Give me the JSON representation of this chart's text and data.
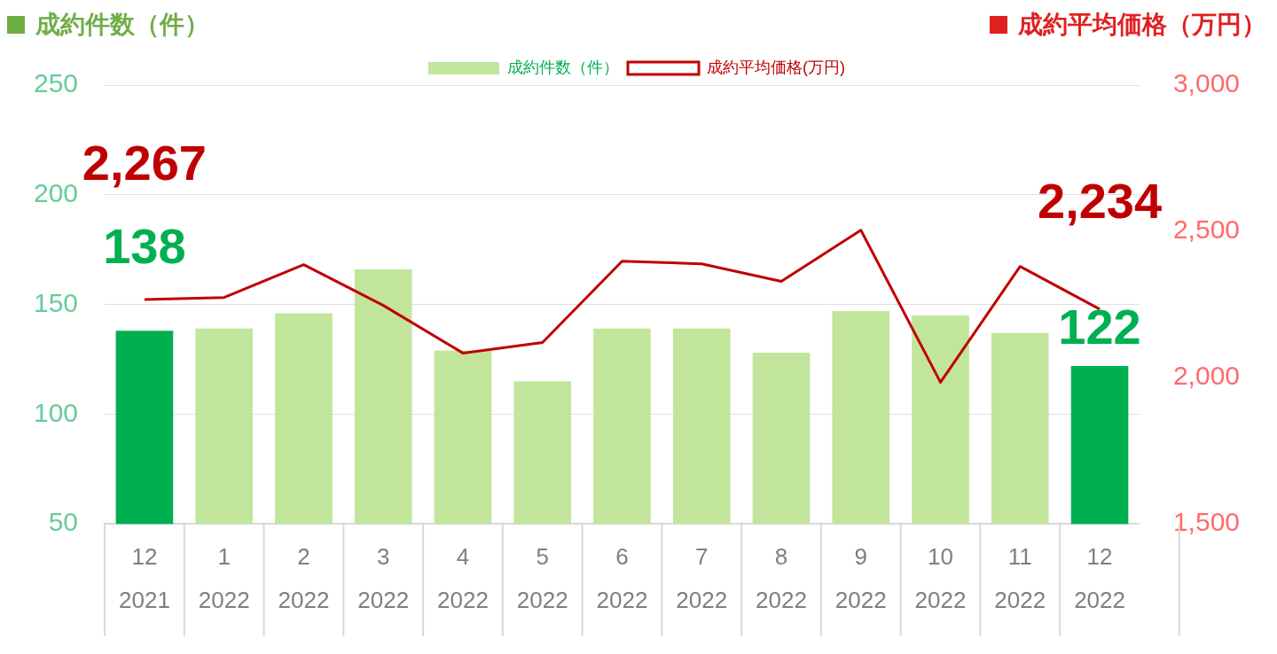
{
  "chart_data": {
    "type": "bar",
    "ylabel": "成約件数（件）",
    "y2label": "成約平均価格（万円）",
    "categories": [
      "12\n2021",
      "1\n2022",
      "2\n2022",
      "3\n2022",
      "4\n2022",
      "5\n2022",
      "6\n2022",
      "7\n2022",
      "8\n2022",
      "9\n2022",
      "10\n2022",
      "11\n2022",
      "12\n2022"
    ],
    "series": [
      {
        "name": "成約件数（件）",
        "color": "#c2e59c",
        "colors": [
          "#00b050",
          "#c2e59c",
          "#c2e59c",
          "#c2e59c",
          "#c2e59c",
          "#c2e59c",
          "#c2e59c",
          "#c2e59c",
          "#c2e59c",
          "#c2e59c",
          "#c2e59c",
          "#c2e59c",
          "#00b050"
        ],
        "values": [
          138,
          139,
          146,
          166,
          129,
          115,
          139,
          139,
          128,
          147,
          145,
          137,
          122
        ],
        "value_labels": [
          "138",
          null,
          null,
          null,
          null,
          null,
          null,
          null,
          null,
          null,
          null,
          null,
          "122"
        ]
      },
      {
        "name": "成約平均価格(万円)",
        "type": "line",
        "axis": "y2",
        "color": "#c00000",
        "marker": "none",
        "values": [
          2267,
          2274,
          2386,
          2247,
          2084,
          2120,
          2398,
          2389,
          2329,
          2504,
          1984,
          2380,
          2234
        ],
        "value_labels": [
          "2,267",
          null,
          null,
          null,
          null,
          null,
          null,
          null,
          null,
          null,
          null,
          null,
          "2,234"
        ]
      }
    ],
    "ylim": [
      50,
      250
    ],
    "yticks": [
      50,
      100,
      150,
      200,
      250
    ],
    "y2lim": [
      1500,
      3000
    ],
    "y2ticks": [
      {
        "value": 1500,
        "label": "1,500"
      },
      {
        "value": 2000,
        "label": "2,000"
      },
      {
        "value": 2500,
        "label": "2,500"
      },
      {
        "value": 3000,
        "label": "3,000"
      }
    ],
    "grid": "y",
    "legend": "top"
  }
}
